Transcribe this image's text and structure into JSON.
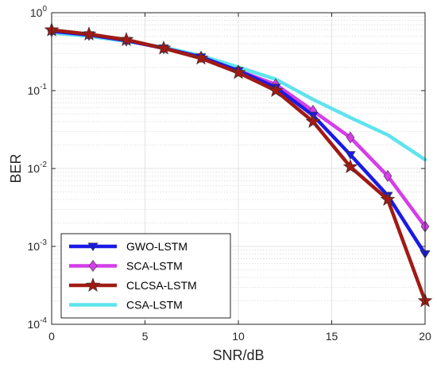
{
  "chart_data": {
    "type": "line",
    "title": "",
    "xlabel": "SNR/dB",
    "ylabel": "BER",
    "xscale": "linear",
    "yscale": "log",
    "xlim": [
      0,
      20
    ],
    "ylim": [
      0.0001,
      1
    ],
    "xticks": [
      0,
      5,
      10,
      15,
      20
    ],
    "xtick_labels": [
      "0",
      "5",
      "10",
      "15",
      "20"
    ],
    "yticks": [
      0.0001,
      0.001,
      0.01,
      0.1,
      1
    ],
    "ytick_labels": [
      {
        "base": "10",
        "exp": "-4"
      },
      {
        "base": "10",
        "exp": "-3"
      },
      {
        "base": "10",
        "exp": "-2"
      },
      {
        "base": "10",
        "exp": "-1"
      },
      {
        "base": "10",
        "exp": "0"
      }
    ],
    "grid": true,
    "minor_grid": true,
    "legend_position": "bottom-left",
    "series": [
      {
        "name": "GWO-LSTM",
        "color": "#1a1ae6",
        "marker": "triangle-down",
        "x": [
          0,
          2,
          4,
          6,
          8,
          10,
          12,
          14,
          16,
          18,
          20
        ],
        "y": [
          0.58,
          0.52,
          0.44,
          0.35,
          0.27,
          0.18,
          0.11,
          0.048,
          0.015,
          0.0045,
          0.0008
        ]
      },
      {
        "name": "SCA-LSTM",
        "color": "#d43ee8",
        "marker": "diamond",
        "x": [
          0,
          2,
          4,
          6,
          8,
          10,
          12,
          14,
          16,
          18,
          20
        ],
        "y": [
          0.58,
          0.52,
          0.44,
          0.35,
          0.27,
          0.18,
          0.12,
          0.055,
          0.025,
          0.008,
          0.0018
        ]
      },
      {
        "name": "CLCSA-LSTM",
        "color": "#a11a14",
        "marker": "star",
        "x": [
          0,
          2,
          4,
          6,
          8,
          10,
          12,
          14,
          16,
          18,
          20
        ],
        "y": [
          0.6,
          0.53,
          0.45,
          0.35,
          0.26,
          0.17,
          0.1,
          0.04,
          0.0105,
          0.004,
          0.0002
        ]
      },
      {
        "name": "CSA-LSTM",
        "color": "#5fe3ee",
        "marker": "none",
        "x": [
          0,
          2,
          4,
          6,
          8,
          10,
          12,
          14,
          16,
          18,
          20
        ],
        "y": [
          0.55,
          0.5,
          0.43,
          0.36,
          0.28,
          0.2,
          0.14,
          0.077,
          0.045,
          0.027,
          0.013
        ]
      }
    ]
  }
}
